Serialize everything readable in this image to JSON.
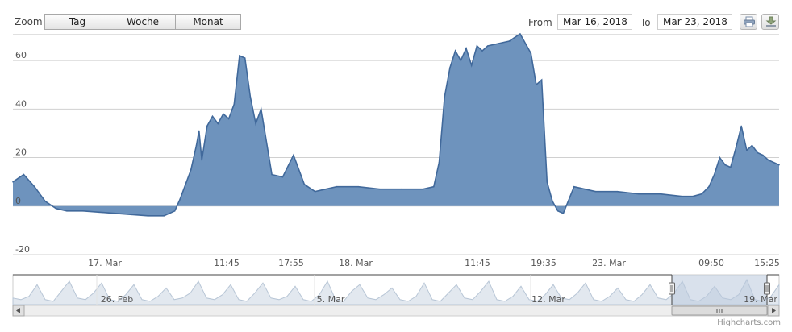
{
  "toolbar": {
    "zoom_label": "Zoom",
    "zoom_buttons": [
      "Tag",
      "Woche",
      "Monat"
    ],
    "from_label": "From",
    "from_value": "Mar 16, 2018",
    "to_label": "To",
    "to_value": "Mar 23, 2018",
    "print_icon": "printer-icon",
    "export_icon": "download-icon"
  },
  "credits": "Highcharts.com",
  "colors": {
    "series_fill": "#6e93bd",
    "series_line": "#41699b",
    "grid": "#d0d0d0",
    "navigator_fill": "#e2e8ef",
    "navigator_line": "#b8c6d6",
    "navigator_selected_fill": "#b9c9dc"
  },
  "chart_data": {
    "type": "area",
    "title": "",
    "xlabel": "",
    "ylabel": "",
    "ylim": [
      -20,
      70
    ],
    "yticks": [
      -20,
      0,
      20,
      40,
      60
    ],
    "xlim": [
      "2018-03-16 18:00",
      "2018-03-19 17:00"
    ],
    "xticks": [
      "17. Mar",
      "11:45",
      "17:55",
      "18. Mar",
      "11:45",
      "19:35",
      "23. Mar",
      "09:50",
      "15:25"
    ],
    "grid": true,
    "legend": "none",
    "series": [
      {
        "x": [
          "2018-03-16 18:00",
          "2018-03-16 19:00",
          "2018-03-16 20:00",
          "2018-03-16 21:00",
          "2018-03-16 22:00",
          "2018-03-16 23:00",
          "2018-03-17 00:30",
          "2018-03-17 02:00",
          "2018-03-17 03:30",
          "2018-03-17 05:00",
          "2018-03-17 06:30",
          "2018-03-17 08:00",
          "2018-03-17 09:00",
          "2018-03-17 09:30",
          "2018-03-17 10:00",
          "2018-03-17 10:30",
          "2018-03-17 11:00",
          "2018-03-17 11:15",
          "2018-03-17 11:30",
          "2018-03-17 12:00",
          "2018-03-17 12:30",
          "2018-03-17 13:00",
          "2018-03-17 13:30",
          "2018-03-17 14:00",
          "2018-03-17 14:30",
          "2018-03-17 15:00",
          "2018-03-17 15:30",
          "2018-03-17 16:00",
          "2018-03-17 16:30",
          "2018-03-17 17:00",
          "2018-03-17 18:00",
          "2018-03-17 19:00",
          "2018-03-17 20:00",
          "2018-03-17 21:00",
          "2018-03-17 22:00",
          "2018-03-17 23:00",
          "2018-03-18 00:00",
          "2018-03-18 02:00",
          "2018-03-18 04:00",
          "2018-03-18 06:00",
          "2018-03-18 08:00",
          "2018-03-18 09:00",
          "2018-03-18 09:30",
          "2018-03-18 10:00",
          "2018-03-18 10:30",
          "2018-03-18 11:00",
          "2018-03-18 11:30",
          "2018-03-18 12:00",
          "2018-03-18 12:30",
          "2018-03-18 13:00",
          "2018-03-18 13:30",
          "2018-03-18 14:00",
          "2018-03-18 15:00",
          "2018-03-18 16:00",
          "2018-03-18 17:00",
          "2018-03-18 18:00",
          "2018-03-18 18:30",
          "2018-03-18 19:00",
          "2018-03-18 19:30",
          "2018-03-18 20:00",
          "2018-03-18 20:30",
          "2018-03-18 21:00",
          "2018-03-18 22:00",
          "2018-03-18 23:00",
          "2018-03-19 00:00",
          "2018-03-19 02:00",
          "2018-03-19 04:00",
          "2018-03-19 06:00",
          "2018-03-19 08:00",
          "2018-03-19 09:00",
          "2018-03-19 09:50",
          "2018-03-19 10:30",
          "2018-03-19 11:00",
          "2018-03-19 11:30",
          "2018-03-19 12:00",
          "2018-03-19 12:30",
          "2018-03-19 13:00",
          "2018-03-19 13:30",
          "2018-03-19 14:00",
          "2018-03-19 14:30",
          "2018-03-19 15:00",
          "2018-03-19 15:30",
          "2018-03-19 16:00",
          "2018-03-19 17:00"
        ],
        "values": [
          10,
          13,
          8,
          2,
          -1,
          -2,
          -2,
          -2.5,
          -3,
          -3.5,
          -4,
          -4,
          -2,
          3,
          9,
          15,
          25,
          31,
          19,
          33,
          37,
          34,
          38,
          36,
          42,
          62,
          61,
          45,
          34,
          40,
          13,
          12,
          21,
          9,
          6,
          7,
          8,
          8,
          7,
          7,
          7,
          8,
          18,
          45,
          57,
          64,
          60,
          65,
          58,
          66,
          64,
          66,
          67,
          68,
          71,
          63,
          50,
          52,
          10,
          2,
          -2,
          -3,
          8,
          7,
          6,
          6,
          5,
          5,
          4,
          4,
          5,
          8,
          13,
          20,
          17,
          16,
          24,
          33,
          23,
          25,
          22,
          21,
          19,
          17
        ]
      }
    ],
    "navigator": {
      "labels": [
        "26. Feb",
        "5. Mar",
        "12. Mar",
        "19. Mar"
      ],
      "values": [
        4,
        3,
        5,
        12,
        3,
        2,
        8,
        14,
        4,
        3,
        7,
        13,
        3,
        2,
        6,
        12,
        3,
        2,
        5,
        10,
        3,
        4,
        7,
        14,
        4,
        3,
        6,
        12,
        3,
        2,
        7,
        13,
        4,
        3,
        5,
        11,
        3,
        2,
        6,
        14,
        3,
        2,
        8,
        12,
        4,
        3,
        6,
        10,
        3,
        2,
        5,
        13,
        3,
        2,
        7,
        12,
        4,
        3,
        8,
        14,
        3,
        2,
        5,
        11,
        3,
        2,
        6,
        12,
        4,
        3,
        7,
        13,
        3,
        2,
        5,
        10,
        3,
        2,
        6,
        12,
        4,
        3,
        7,
        14,
        3,
        2,
        5,
        11,
        4,
        3,
        6,
        15,
        3,
        2,
        5,
        12
      ],
      "selected_range": [
        "2018-03-16",
        "2018-03-23"
      ]
    }
  }
}
